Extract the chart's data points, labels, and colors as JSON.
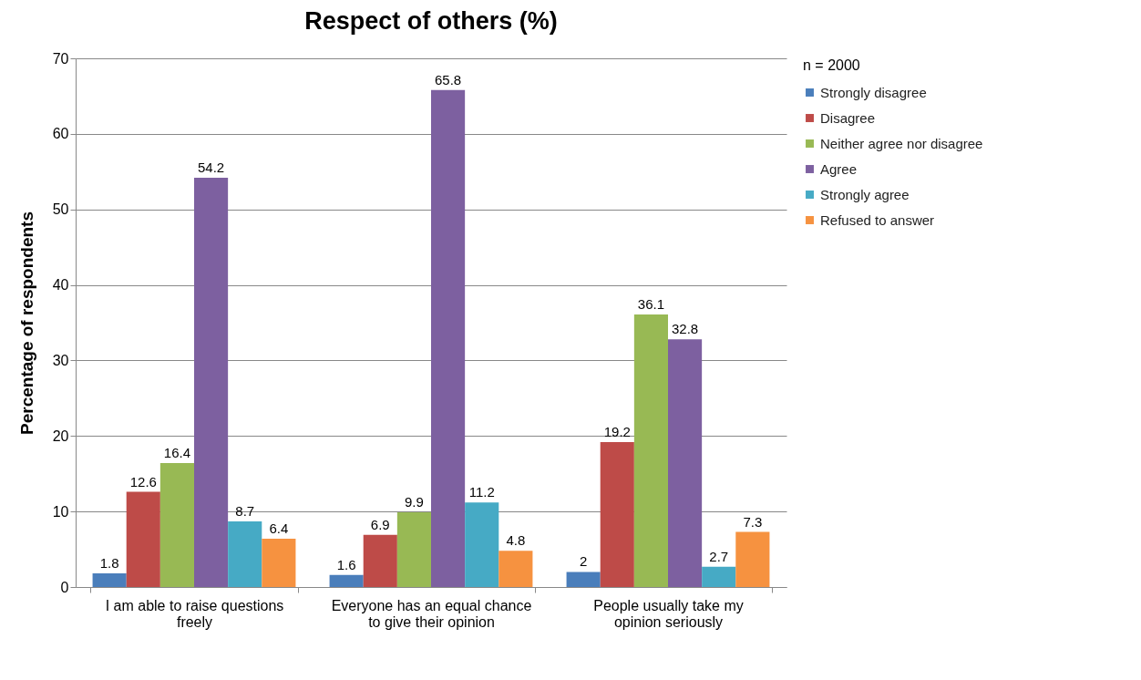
{
  "chart_data": {
    "type": "bar",
    "title": "Respect of others (%)",
    "ylabel": "Percentage of respondents",
    "legend_title": "n = 2000",
    "categories": [
      "I am able to raise questions freely",
      "Everyone has an equal chance to give their opinion",
      "People usually take my opinion seriously"
    ],
    "series": [
      {
        "name": "Strongly disagree",
        "color": "#4a7ebb",
        "values": [
          1.8,
          1.6,
          2
        ]
      },
      {
        "name": "Disagree",
        "color": "#be4b48",
        "values": [
          12.6,
          6.9,
          19.2
        ]
      },
      {
        "name": "Neither agree nor disagree",
        "color": "#98b954",
        "values": [
          16.4,
          9.9,
          36.1
        ]
      },
      {
        "name": "Agree",
        "color": "#7d60a0",
        "values": [
          54.2,
          65.8,
          32.8
        ]
      },
      {
        "name": "Strongly agree",
        "color": "#46aac5",
        "values": [
          8.7,
          11.2,
          2.7
        ]
      },
      {
        "name": "Refused to answer",
        "color": "#f69240",
        "values": [
          6.4,
          4.8,
          7.3
        ]
      }
    ],
    "ylim": [
      0,
      70
    ],
    "yticks": [
      0,
      10,
      20,
      30,
      40,
      50,
      60,
      70
    ],
    "grid": "y",
    "legend": "right",
    "data_labels": true
  }
}
